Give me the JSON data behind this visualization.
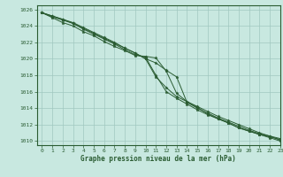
{
  "xlabel": "Graphe pression niveau de la mer (hPa)",
  "xlim": [
    -0.5,
    23
  ],
  "ylim": [
    1009.5,
    1026.5
  ],
  "yticks": [
    1010,
    1012,
    1014,
    1016,
    1018,
    1020,
    1022,
    1024,
    1026
  ],
  "xticks": [
    0,
    1,
    2,
    3,
    4,
    5,
    6,
    7,
    8,
    9,
    10,
    11,
    12,
    13,
    14,
    15,
    16,
    17,
    18,
    19,
    20,
    21,
    22,
    23
  ],
  "background_color": "#c8e8e0",
  "grid_color": "#a0c8c0",
  "line_color": "#2a5c32",
  "series": [
    [
      1025.6,
      1025.0,
      1024.4,
      1024.0,
      1023.3,
      1022.8,
      1022.1,
      1021.5,
      1021.0,
      1020.4,
      1020.3,
      1020.1,
      1018.5,
      1015.8,
      1014.8,
      1014.1,
      1013.3,
      1012.7,
      1012.2,
      1011.6,
      1011.2,
      1010.8,
      1010.5,
      1010.2
    ],
    [
      1025.6,
      1025.1,
      1024.7,
      1024.3,
      1023.6,
      1023.0,
      1022.4,
      1021.8,
      1021.1,
      1020.5,
      1020.2,
      1018.0,
      1016.0,
      1015.2,
      1014.5,
      1013.8,
      1013.2,
      1012.7,
      1012.2,
      1011.6,
      1011.2,
      1010.8,
      1010.4,
      1010.0
    ],
    [
      1025.6,
      1025.2,
      1024.8,
      1024.3,
      1023.7,
      1023.1,
      1022.5,
      1021.9,
      1021.3,
      1020.7,
      1020.0,
      1019.5,
      1018.6,
      1017.8,
      1014.7,
      1014.0,
      1013.4,
      1012.8,
      1012.3,
      1011.8,
      1011.3,
      1010.9,
      1010.6,
      1010.3
    ],
    [
      1025.6,
      1025.2,
      1024.8,
      1024.4,
      1023.8,
      1023.2,
      1022.6,
      1022.0,
      1021.3,
      1020.7,
      1020.0,
      1017.8,
      1016.5,
      1015.4,
      1014.8,
      1014.2,
      1013.6,
      1013.0,
      1012.5,
      1012.0,
      1011.5,
      1011.0,
      1010.6,
      1010.1
    ]
  ]
}
